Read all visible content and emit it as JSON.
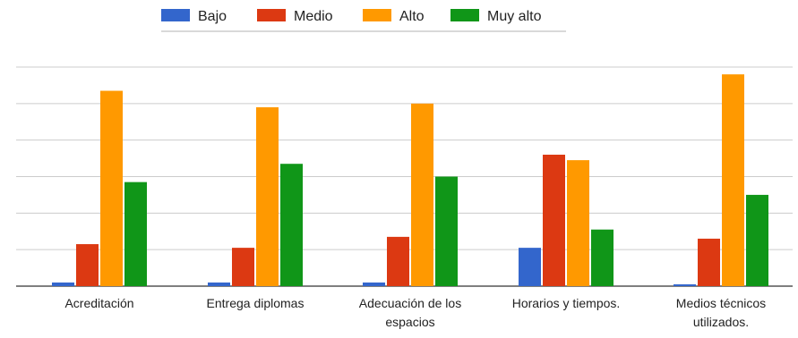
{
  "chart_data": {
    "type": "bar",
    "categories": [
      [
        "Acreditación"
      ],
      [
        "Entrega diplomas"
      ],
      [
        "Adecuación de los",
        "espacios"
      ],
      [
        "Horarios y tiempos."
      ],
      [
        "Medios técnicos",
        "utilizados."
      ]
    ],
    "series": [
      {
        "name": "Bajo",
        "color": "#3366cc",
        "values": [
          2,
          2,
          2,
          21,
          1
        ]
      },
      {
        "name": "Medio",
        "color": "#dc3912",
        "values": [
          23,
          21,
          27,
          72,
          26
        ]
      },
      {
        "name": "Alto",
        "color": "#ff9900",
        "values": [
          107,
          98,
          100,
          69,
          116
        ]
      },
      {
        "name": "Muy alto",
        "color": "#109618",
        "values": [
          57,
          67,
          60,
          31,
          50
        ]
      }
    ],
    "ylim": [
      0,
      120
    ],
    "gridlines": [
      0,
      20,
      40,
      60,
      80,
      100,
      120
    ],
    "grid": true,
    "legend": "top",
    "title": "",
    "xlabel": "",
    "ylabel": ""
  }
}
